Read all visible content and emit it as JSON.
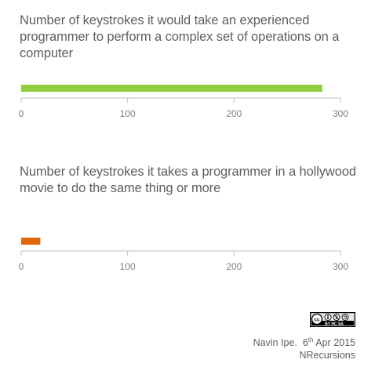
{
  "chart_data": [
    {
      "type": "bar",
      "orientation": "horizontal",
      "title": "Number of keystrokes it would take an experienced programmer to perform a complex set of operations on a computer",
      "values": [
        283
      ],
      "xlim": [
        0,
        300
      ],
      "ticks": [
        0,
        100,
        200,
        300
      ],
      "color": "#8fce3f",
      "grid": false
    },
    {
      "type": "bar",
      "orientation": "horizontal",
      "title": "Number of keystrokes it takes a programmer in a hollywood movie to do the same thing or more",
      "values": [
        18
      ],
      "xlim": [
        0,
        300
      ],
      "ticks": [
        0,
        100,
        200,
        300
      ],
      "color": "#e0670c",
      "grid": false
    }
  ],
  "footer": {
    "author": "Navin Ipe.",
    "date_day": "6",
    "date_suffix": "th",
    "date_rest": "Apr 2015",
    "brand": "NRecursions"
  },
  "license_badge": {
    "icon": "cc-by-nc-sa-icon",
    "text": "BY NC SA"
  }
}
